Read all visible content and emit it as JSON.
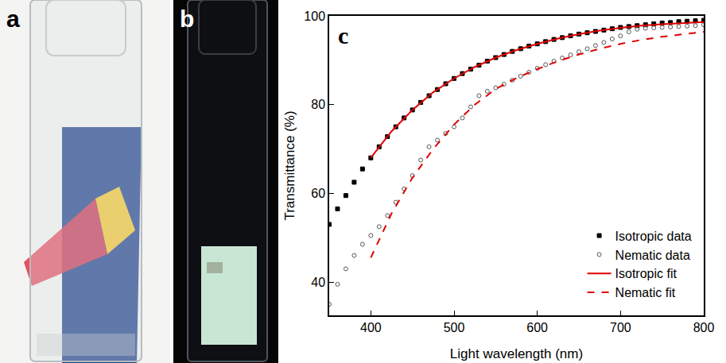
{
  "panel_labels": [
    "a",
    "b",
    "c"
  ],
  "chart_data": {
    "type": "scatter",
    "x_label": "Light wavelength (nm)",
    "y_label": "Transmittance (%)",
    "xlim": [
      350,
      800
    ],
    "xticks": [
      400,
      500,
      600,
      700,
      800
    ],
    "ylim": [
      32.5,
      100
    ],
    "yticks": [
      40,
      60,
      80,
      100
    ],
    "grid": false,
    "legend": "bottom right",
    "series": [
      {
        "name": "Isotropic data",
        "type": "scatter",
        "marker": "square",
        "color": "#000000",
        "x": [
          350,
          360,
          370,
          380,
          390,
          400,
          410,
          420,
          430,
          440,
          450,
          460,
          470,
          480,
          490,
          500,
          510,
          520,
          530,
          540,
          550,
          560,
          570,
          580,
          590,
          600,
          610,
          620,
          630,
          640,
          650,
          660,
          670,
          680,
          690,
          700,
          710,
          720,
          730,
          740,
          750,
          760,
          770,
          780,
          790,
          800
        ],
        "values": [
          53,
          56.5,
          59.5,
          62.5,
          65.5,
          68,
          70.5,
          72.8,
          75,
          77,
          78.8,
          80.5,
          82,
          83.4,
          84.7,
          85.9,
          87,
          88,
          88.9,
          89.8,
          90.6,
          91.3,
          92,
          92.6,
          93.2,
          93.7,
          94.2,
          94.7,
          95.1,
          95.5,
          95.9,
          96.2,
          96.5,
          96.8,
          97.1,
          97.4,
          97.6,
          97.8,
          98,
          98.2,
          98.4,
          98.5,
          98.7,
          98.8,
          98.9,
          99
        ]
      },
      {
        "name": "Nematic data",
        "type": "scatter",
        "marker": "circle-open",
        "color": "#555555",
        "x": [
          350,
          360,
          370,
          380,
          390,
          400,
          410,
          420,
          430,
          440,
          450,
          460,
          470,
          480,
          490,
          500,
          510,
          520,
          530,
          540,
          550,
          560,
          570,
          580,
          590,
          600,
          610,
          620,
          630,
          640,
          650,
          660,
          670,
          680,
          690,
          700,
          710,
          720,
          730,
          740,
          750,
          760,
          770,
          780,
          790,
          800
        ],
        "values": [
          35,
          39.5,
          43,
          46,
          48.5,
          50.5,
          52.5,
          55,
          58,
          61,
          64,
          67.5,
          70.5,
          72,
          73.5,
          75,
          77,
          79.5,
          82,
          83,
          83.8,
          84.6,
          85.5,
          86.4,
          87.3,
          88.2,
          89,
          89.8,
          90.5,
          91.2,
          91.9,
          92.6,
          93.3,
          94,
          94.8,
          95.5,
          96.4,
          97,
          97.2,
          97.3,
          97.4,
          97.5,
          97.6,
          97.7,
          97.8,
          98
        ]
      },
      {
        "name": "Isotropic fit",
        "type": "line",
        "line_style": "solid",
        "color": "#e00000",
        "x": [
          400,
          425,
          450,
          475,
          500,
          525,
          550,
          575,
          600,
          625,
          650,
          675,
          700,
          725,
          750,
          775,
          800
        ],
        "values": [
          68,
          74,
          78.8,
          82.8,
          85.9,
          88.5,
          90.6,
          92.3,
          93.7,
          94.9,
          95.9,
          96.7,
          97.3,
          97.8,
          98.1,
          98.4,
          98.6
        ]
      },
      {
        "name": "Nematic fit",
        "type": "line",
        "line_style": "dash",
        "color": "#e00000",
        "x": [
          400,
          425,
          450,
          475,
          500,
          525,
          550,
          575,
          600,
          625,
          650,
          675,
          700,
          725,
          750,
          775,
          800
        ],
        "values": [
          45.5,
          55.5,
          63.5,
          70,
          75.5,
          80,
          83.5,
          86,
          88,
          89.8,
          91.3,
          92.6,
          93.7,
          94.6,
          95.3,
          95.9,
          96.4
        ]
      }
    ]
  }
}
